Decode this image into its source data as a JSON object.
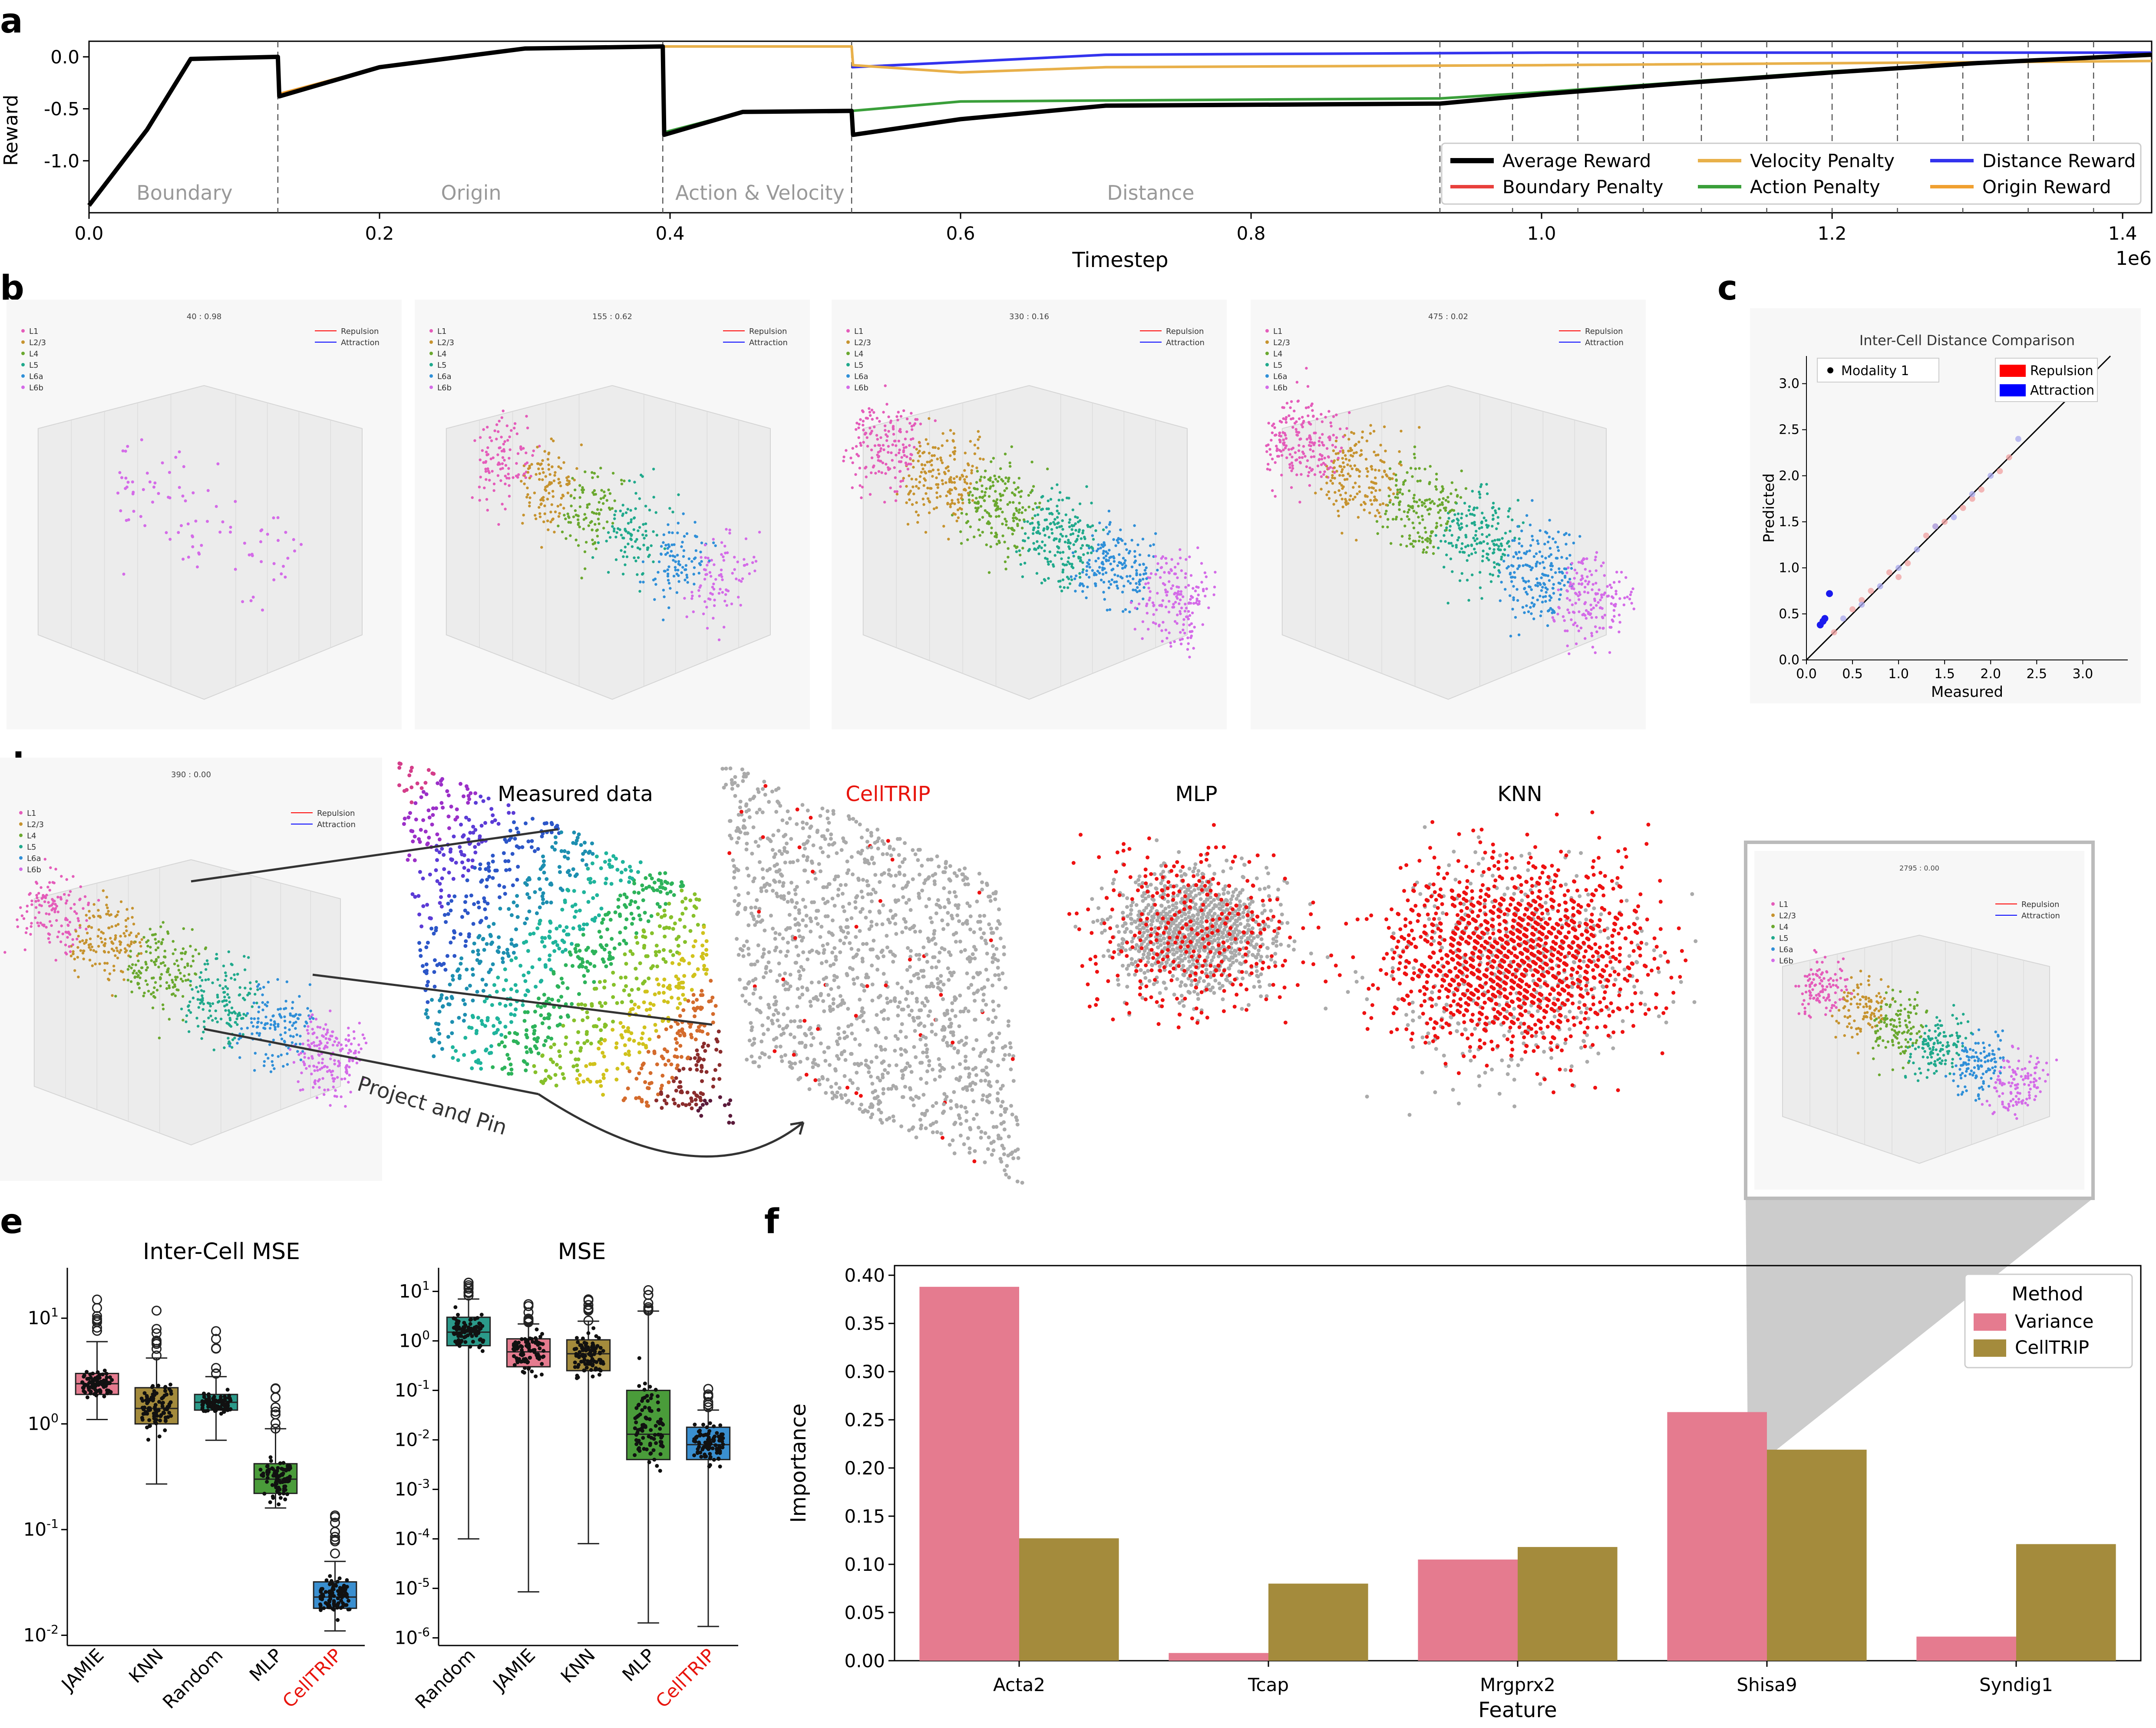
{
  "panel_letters": [
    "a",
    "b",
    "c",
    "d",
    "e",
    "f"
  ],
  "colors": {
    "average_reward": "#000000",
    "boundary_penalty": "#e8403c",
    "velocity_penalty": "#e8b04a",
    "action_penalty": "#3a9f3a",
    "distance_reward": "#3333ee",
    "origin_reward": "#f0a030",
    "variance": "#e57b8f",
    "celltrip_bar": "#a48b3c",
    "celltrip_label": "#e8140c",
    "prediction_off": "#ee1111",
    "prediction_ok": "#aaaaaa",
    "repulsion": "#ff0000",
    "attraction": "#0000ff",
    "layers": [
      "#e45cba",
      "#c6932f",
      "#6aa82f",
      "#20a98c",
      "#2f8fd8",
      "#d46be8"
    ]
  },
  "panel_a": {
    "ylabel": "Reward",
    "xlabel": "Timestep",
    "offset_label": "1e6",
    "phases": [
      "Boundary",
      "Origin",
      "Action & Velocity",
      "Distance"
    ],
    "legend": [
      "Average Reward",
      "Velocity Penalty",
      "Distance Reward",
      "Boundary Penalty",
      "Action Penalty",
      "Origin Reward"
    ]
  },
  "panel_b": {
    "titles": [
      "40 : 0.98",
      "155 : 0.62",
      "330 : 0.16",
      "475 : 0.02"
    ],
    "layer_legend": [
      "L1",
      "L2/3",
      "L4",
      "L5",
      "L6a",
      "L6b"
    ],
    "force_legend": [
      "Repulsion",
      "Attraction"
    ]
  },
  "panel_c": {
    "title": "Inter-Cell Distance Comparison",
    "xlabel": "Measured",
    "ylabel": "Predicted",
    "legend_left": "Modality 1",
    "legend_right": [
      "Repulsion",
      "Attraction"
    ]
  },
  "panel_d": {
    "inset_title": "390 : 0.00",
    "zoom_title": "2795 : 0.00",
    "zoom_legend": [
      "L1",
      "L2/3",
      "L4",
      "L5",
      "L6a",
      "L6b"
    ],
    "captions": [
      "Measured data",
      "CellTRIP",
      "MLP",
      "KNN"
    ],
    "arrow_label": "Project and Pin"
  },
  "panel_e": {
    "left_title": "Inter-Cell MSE",
    "right_title": "MSE",
    "left_labels": [
      "JAMIE",
      "KNN",
      "Random",
      "MLP",
      "CellTRIP"
    ],
    "right_labels": [
      "Random",
      "JAMIE",
      "KNN",
      "MLP",
      "CellTRIP"
    ]
  },
  "chart_data": [
    {
      "type": "line",
      "panel": "a",
      "xlabel": "Timestep",
      "ylabel": "Reward",
      "x_unit_multiplier": "1e6",
      "xlim": [
        0.0,
        1.42
      ],
      "ylim": [
        -1.5,
        0.15
      ],
      "xticks": [
        0.0,
        0.2,
        0.4,
        0.6,
        0.8,
        1.0,
        1.2,
        1.4
      ],
      "yticks": [
        0.0,
        -0.5,
        -1.0
      ],
      "phase_boundaries": [
        0.13,
        0.395,
        0.525
      ],
      "late_markers": [
        0.93,
        0.98,
        1.025,
        1.07,
        1.11,
        1.155,
        1.2,
        1.245,
        1.29,
        1.335,
        1.38
      ],
      "grid": false,
      "legend_position": "lower-right",
      "series": [
        {
          "name": "Average Reward",
          "x": [
            0.0,
            0.04,
            0.07,
            0.13,
            0.131,
            0.2,
            0.3,
            0.395,
            0.396,
            0.45,
            0.525,
            0.526,
            0.6,
            0.7,
            0.93,
            1.0,
            1.1,
            1.2,
            1.3,
            1.42
          ],
          "y": [
            -1.43,
            -0.7,
            -0.02,
            0.0,
            -0.38,
            -0.1,
            0.08,
            0.1,
            -0.75,
            -0.53,
            -0.52,
            -0.75,
            -0.6,
            -0.47,
            -0.45,
            -0.36,
            -0.25,
            -0.15,
            -0.06,
            0.02
          ]
        },
        {
          "name": "Boundary Penalty",
          "x": [
            0.0,
            0.04,
            0.07,
            0.13
          ],
          "y": [
            -1.43,
            -0.7,
            -0.02,
            0.0
          ]
        },
        {
          "name": "Origin Reward",
          "x": [
            0.13,
            0.2,
            0.3,
            0.395
          ],
          "y": [
            -0.36,
            -0.1,
            0.08,
            0.1
          ]
        },
        {
          "name": "Velocity Penalty",
          "x": [
            0.395,
            0.525,
            0.526,
            0.6,
            0.7,
            1.0,
            1.42
          ],
          "y": [
            0.1,
            0.1,
            -0.08,
            -0.15,
            -0.1,
            -0.08,
            -0.04
          ]
        },
        {
          "name": "Action Penalty",
          "x": [
            0.395,
            0.45,
            0.525,
            0.6,
            0.7,
            0.93,
            1.0,
            1.1,
            1.2,
            1.3,
            1.42
          ],
          "y": [
            -0.73,
            -0.53,
            -0.52,
            -0.43,
            -0.42,
            -0.4,
            -0.34,
            -0.24,
            -0.14,
            -0.06,
            0.02
          ]
        },
        {
          "name": "Distance Reward",
          "x": [
            0.525,
            0.6,
            0.7,
            1.0,
            1.42
          ],
          "y": [
            -0.1,
            -0.05,
            0.02,
            0.04,
            0.04
          ]
        }
      ]
    },
    {
      "type": "scatter",
      "panel": "c",
      "title": "Inter-Cell Distance Comparison",
      "xlabel": "Measured",
      "ylabel": "Predicted",
      "xlim": [
        0.0,
        3.3
      ],
      "ylim": [
        0.0,
        3.3
      ],
      "xticks": [
        0.0,
        0.5,
        1.0,
        1.5,
        2.0,
        2.5,
        3.0
      ],
      "yticks": [
        0.0,
        0.5,
        1.0,
        1.5,
        2.0,
        2.5,
        3.0
      ],
      "legend_position": "top",
      "series": [
        {
          "name": "Repulsion",
          "x": [
            0.3,
            0.5,
            0.7,
            0.9,
            1.1,
            1.3,
            1.5,
            1.7,
            1.9,
            2.1,
            0.6,
            1.0,
            1.4,
            1.8,
            2.2
          ],
          "y": [
            0.3,
            0.55,
            0.75,
            0.95,
            1.05,
            1.35,
            1.5,
            1.65,
            1.85,
            2.05,
            0.65,
            0.9,
            1.45,
            1.75,
            2.2
          ]
        },
        {
          "name": "Attraction",
          "x": [
            0.15,
            0.18,
            0.2,
            0.25,
            0.4,
            0.6,
            0.8,
            1.0,
            1.2,
            1.4,
            1.6,
            1.8,
            2.0,
            2.3
          ],
          "y": [
            0.38,
            0.42,
            0.45,
            0.72,
            0.45,
            0.6,
            0.8,
            1.0,
            1.2,
            1.45,
            1.55,
            1.8,
            2.0,
            2.4
          ]
        }
      ]
    },
    {
      "type": "box",
      "panel": "e",
      "title": "Inter-Cell MSE",
      "scale": "log",
      "ylim": [
        0.008,
        30
      ],
      "yticks": [
        0.01,
        0.1,
        1,
        10
      ],
      "categories": [
        "JAMIE",
        "KNN",
        "Random",
        "MLP",
        "CellTRIP"
      ],
      "boxes": [
        {
          "q1": 1.9,
          "median": 2.4,
          "q3": 3.0,
          "lower": 1.1,
          "upper": 6.0
        },
        {
          "q1": 1.0,
          "median": 1.4,
          "q3": 2.2,
          "lower": 0.27,
          "upper": 4.2
        },
        {
          "q1": 1.35,
          "median": 1.6,
          "q3": 1.9,
          "lower": 0.7,
          "upper": 2.8
        },
        {
          "q1": 0.22,
          "median": 0.3,
          "q3": 0.42,
          "lower": 0.16,
          "upper": 0.9
        },
        {
          "q1": 0.018,
          "median": 0.023,
          "q3": 0.032,
          "lower": 0.011,
          "upper": 0.05
        }
      ]
    },
    {
      "type": "box",
      "panel": "e",
      "title": "MSE",
      "scale": "log",
      "ylim": [
        7e-07,
        30
      ],
      "yticks": [
        1e-06,
        1e-05,
        0.0001,
        0.001,
        0.01,
        0.1,
        1,
        10
      ],
      "categories": [
        "Random",
        "JAMIE",
        "KNN",
        "MLP",
        "CellTRIP"
      ],
      "boxes": [
        {
          "q1": 0.8,
          "median": 1.5,
          "q3": 3.0,
          "lower": 0.0001,
          "upper": 7.0
        },
        {
          "q1": 0.3,
          "median": 0.6,
          "q3": 1.1,
          "lower": 8.5e-06,
          "upper": 2.2
        },
        {
          "q1": 0.25,
          "median": 0.55,
          "q3": 1.05,
          "lower": 8e-05,
          "upper": 2.5
        },
        {
          "q1": 0.004,
          "median": 0.013,
          "q3": 0.1,
          "lower": 2e-06,
          "upper": 4.0
        },
        {
          "q1": 0.004,
          "median": 0.008,
          "q3": 0.018,
          "lower": 1.7e-06,
          "upper": 0.04
        }
      ]
    },
    {
      "type": "bar",
      "panel": "f",
      "xlabel": "Feature",
      "ylabel": "Importance",
      "ylim": [
        0,
        0.41
      ],
      "yticks": [
        0.0,
        0.05,
        0.1,
        0.15,
        0.2,
        0.25,
        0.3,
        0.35,
        0.4
      ],
      "legend_title": "Method",
      "legend_position": "top-right",
      "categories": [
        "Acta2",
        "Tcap",
        "Mrgprx2",
        "Shisa9",
        "Syndig1"
      ],
      "series": [
        {
          "name": "Variance",
          "values": [
            0.388,
            0.008,
            0.105,
            0.258,
            0.025
          ]
        },
        {
          "name": "CellTRIP",
          "values": [
            0.127,
            0.08,
            0.118,
            0.219,
            0.121
          ]
        }
      ]
    }
  ]
}
